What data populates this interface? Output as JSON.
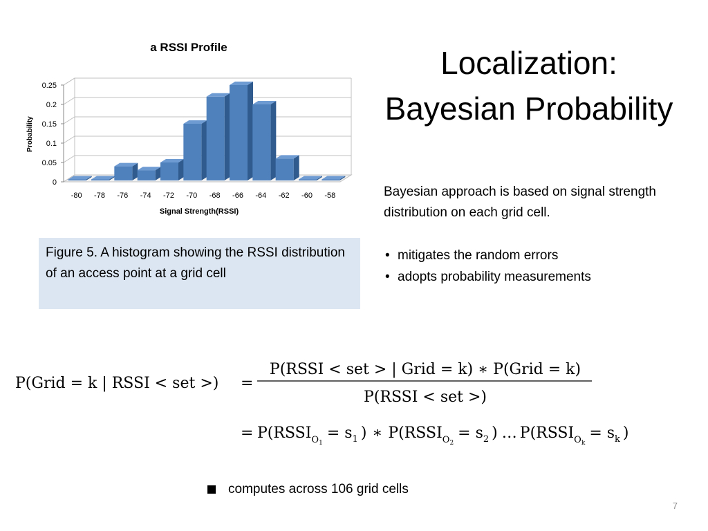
{
  "slide": {
    "title_line1": "Localization:",
    "title_line2": "Bayesian Probability",
    "description": "Bayesian approach is based on signal strength distribution  on each grid cell.",
    "bullets": [
      "mitigates the random errors",
      "adopts probability measurements"
    ],
    "caption": "Figure 5. A histogram showing the RSSI distribution of an access point at a grid cell",
    "footnote": "computes across 106 grid cells",
    "page_number": "7"
  },
  "chart_data": {
    "type": "bar",
    "title": "a RSSI Profile",
    "xlabel": "Signal Strength(RSSI)",
    "ylabel": "Probability",
    "categories": [
      "-80",
      "-78",
      "-76",
      "-74",
      "-72",
      "-70",
      "-68",
      "-66",
      "-64",
      "-62",
      "-60",
      "-58"
    ],
    "values": [
      0,
      0,
      0.04,
      0.03,
      0.05,
      0.15,
      0.22,
      0.25,
      0.2,
      0.06,
      0,
      0
    ],
    "yticks": [
      "0",
      "0.05",
      "0.1",
      "0.15",
      "0.2",
      "0.25"
    ],
    "ylim": [
      0,
      0.25
    ],
    "grid": true,
    "bar_color": "#4f81bd",
    "bar_side_color": "#2f5b8f",
    "bar_top_color": "#6f9bd3"
  },
  "formula": {
    "lhs": "P(Grid = k | RSSI < set >)",
    "eq1": "=",
    "numerator": "P(RSSI < set > | Grid = k) ∗ P(Grid = k)",
    "denominator": "P(RSSI < set >)",
    "eq2": "=",
    "product": {
      "t1_base": "P(RSSI",
      "t1_sub": "O",
      "t1_subsub": "1",
      "t1_val": "=  s",
      "t1_valsub": "1",
      "mult": "∗",
      "t2_base": "P(RSSI",
      "t2_sub": "O",
      "t2_subsub": "2",
      "t2_val": "=  s",
      "t2_valsub": "2",
      "dots": "…",
      "t3_base": "P(RSSI",
      "t3_sub": "O",
      "t3_subsub": "k",
      "t3_val": "=  s",
      "t3_valsub": "k"
    }
  }
}
